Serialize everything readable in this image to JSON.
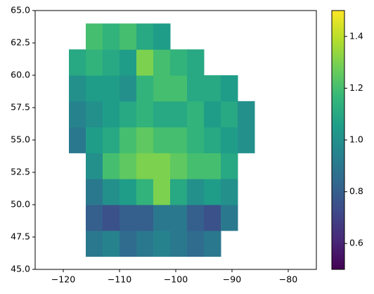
{
  "chart_data": {
    "type": "heatmap",
    "colormap": "viridis",
    "x_edges": [
      -119,
      -116,
      -113,
      -110,
      -107,
      -104,
      -101,
      -98,
      -95,
      -92,
      -89,
      -86
    ],
    "y_edges": [
      46,
      48,
      50,
      52,
      54,
      56,
      58,
      60,
      62,
      64
    ],
    "values": [
      [
        null,
        0.9,
        0.95,
        0.85,
        0.9,
        0.95,
        0.9,
        0.85,
        0.9,
        null,
        null
      ],
      [
        null,
        0.8,
        0.75,
        0.8,
        0.8,
        0.9,
        0.9,
        0.8,
        0.75,
        0.9,
        null
      ],
      [
        null,
        0.9,
        1.0,
        1.05,
        1.15,
        1.3,
        1.1,
        1.0,
        1.05,
        1.0,
        null
      ],
      [
        null,
        1.0,
        1.2,
        1.25,
        1.3,
        1.3,
        1.25,
        1.2,
        1.2,
        1.1,
        null
      ],
      [
        0.9,
        1.05,
        1.1,
        1.2,
        1.25,
        1.2,
        1.2,
        1.15,
        1.1,
        1.05,
        1.0
      ],
      [
        0.95,
        1.0,
        1.05,
        1.1,
        1.15,
        1.1,
        1.1,
        1.15,
        1.05,
        1.1,
        1.0
      ],
      [
        1.0,
        1.05,
        1.05,
        1.0,
        1.15,
        1.2,
        1.2,
        1.1,
        1.1,
        1.05,
        null
      ],
      [
        1.1,
        1.15,
        1.1,
        1.05,
        1.3,
        1.2,
        1.15,
        1.1,
        null,
        null,
        null
      ],
      [
        null,
        1.2,
        1.15,
        1.2,
        1.1,
        1.05,
        null,
        null,
        null,
        null,
        null
      ]
    ],
    "xlim": [
      -125,
      -75
    ],
    "xticks": [
      {
        "value": -120,
        "label": "−120"
      },
      {
        "value": -110,
        "label": "−110"
      },
      {
        "value": -100,
        "label": "−100"
      },
      {
        "value": -90,
        "label": "−90"
      },
      {
        "value": -80,
        "label": "−80"
      }
    ],
    "ylim": [
      45,
      65
    ],
    "yticks": [
      {
        "value": 45,
        "label": "45.0"
      },
      47.5,
      {
        "value": 50,
        "label": "50.0"
      },
      52.5,
      {
        "value": 55,
        "label": "55.0"
      },
      57.5,
      {
        "value": 60,
        "label": "60.0"
      },
      62.5,
      {
        "value": 65,
        "label": "65.0"
      }
    ],
    "clim": [
      0.5,
      1.5
    ],
    "cticks": [
      0.6,
      0.8,
      {
        "value": 1,
        "label": "1.0"
      },
      1.2,
      1.4
    ]
  }
}
